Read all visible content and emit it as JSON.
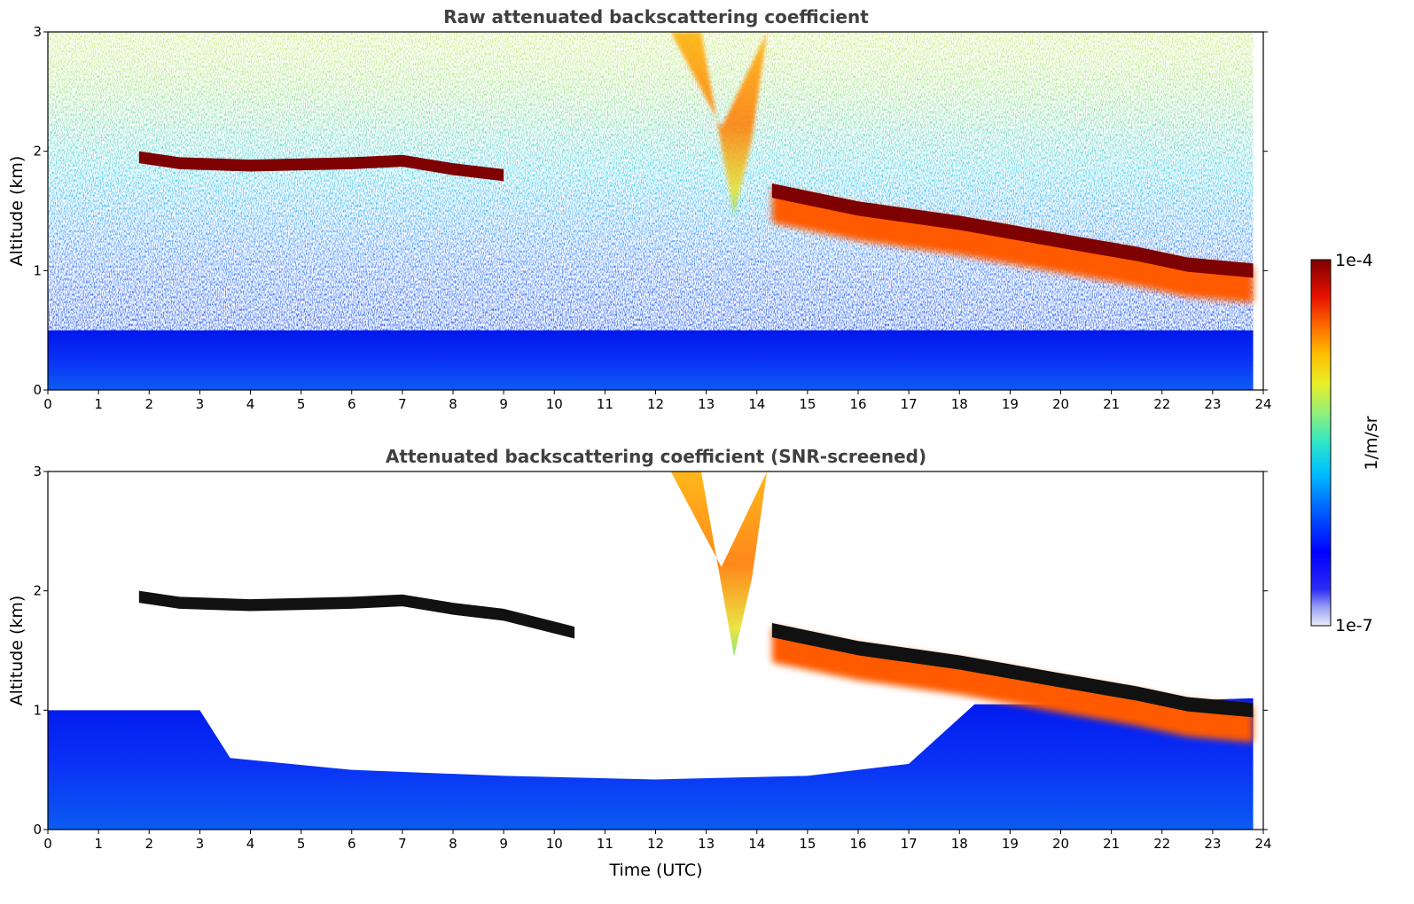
{
  "chart_data": [
    {
      "type": "heatmap",
      "title": "Raw attenuated backscattering coefficient",
      "xlabel": "",
      "ylabel": "Altitude (km)",
      "xlim": [
        0,
        24
      ],
      "ylim": [
        0,
        3
      ],
      "x_ticks": [
        "0",
        "1",
        "2",
        "3",
        "4",
        "5",
        "6",
        "7",
        "8",
        "9",
        "10",
        "11",
        "12",
        "13",
        "14",
        "15",
        "16",
        "17",
        "18",
        "19",
        "20",
        "21",
        "22",
        "23",
        "24"
      ],
      "y_ticks": [
        "0",
        "1",
        "2",
        "3"
      ],
      "features": [
        {
          "kind": "cloud_layer",
          "x_start": 1.8,
          "x_end": 9.0,
          "altitude_km": 1.88,
          "intensity": "1e-4"
        },
        {
          "kind": "cloud_layer",
          "x_start": 14.3,
          "x_end": 23.8,
          "altitude_km_start": 1.65,
          "altitude_km_end": 1.0,
          "intensity": "1e-4"
        },
        {
          "kind": "aerosol_plume",
          "x_start": 12.3,
          "x_end": 14.2,
          "altitude_km_min": 1.45,
          "altitude_km_max": 3.0,
          "intensity": "1e-5"
        },
        {
          "kind": "boundary_layer",
          "x_start": 0,
          "x_end": 23.8,
          "altitude_km_max": 0.5,
          "intensity": "1e-6"
        }
      ]
    },
    {
      "type": "heatmap",
      "title": "Attenuated backscattering coefficient (SNR-screened)",
      "xlabel": "Time (UTC)",
      "ylabel": "Altitude (km)",
      "xlim": [
        0,
        24
      ],
      "ylim": [
        0,
        3
      ],
      "x_ticks": [
        "0",
        "1",
        "2",
        "3",
        "4",
        "5",
        "6",
        "7",
        "8",
        "9",
        "10",
        "11",
        "12",
        "13",
        "14",
        "15",
        "16",
        "17",
        "18",
        "19",
        "20",
        "21",
        "22",
        "23",
        "24"
      ],
      "y_ticks": [
        "0",
        "1",
        "2",
        "3"
      ],
      "features": [
        {
          "kind": "cloud_layer",
          "x_start": 1.8,
          "x_end": 10.4,
          "altitude_km": 1.88
        },
        {
          "kind": "cloud_layer",
          "x_start": 14.3,
          "x_end": 23.8,
          "altitude_km_start": 1.65,
          "altitude_km_end": 1.0
        },
        {
          "kind": "aerosol_plume",
          "x_start": 12.3,
          "x_end": 14.2,
          "altitude_km_min": 1.45,
          "altitude_km_max": 3.0
        },
        {
          "kind": "screened_boundary_layer",
          "x_start": 0,
          "x_end": 23.8,
          "altitude_km_max_early": 1.0,
          "altitude_km_max_midday": 0.45
        }
      ]
    }
  ],
  "colorbar": {
    "label": "1/m/sr",
    "max_label": "1e-4",
    "min_label": "1e-7",
    "colormap": "jet",
    "scale": "log"
  }
}
